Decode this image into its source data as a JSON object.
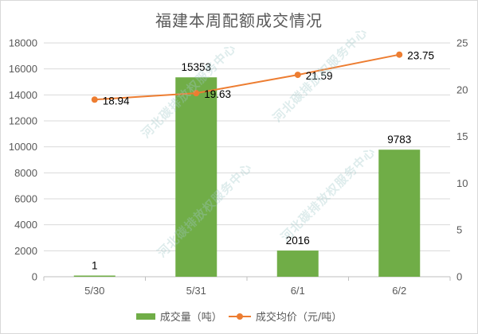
{
  "title": "福建本周配额成交情况",
  "legend": {
    "bar_label": "成交量（吨）",
    "line_label": "成交均价（元/吨）"
  },
  "watermark": "河北碳排放权服务中心",
  "colors": {
    "bar": "#70ad47",
    "line": "#ed7d31",
    "grid": "#d9d9d9",
    "axis_text": "#595959"
  },
  "chart_data": {
    "type": "bar+line",
    "title": "福建本周配额成交情况",
    "categories": [
      "5/30",
      "5/31",
      "6/1",
      "6/2"
    ],
    "series": [
      {
        "name": "成交量（吨）",
        "type": "bar",
        "axis": "left",
        "values": [
          1,
          15353,
          2016,
          9783
        ]
      },
      {
        "name": "成交均价（元/吨）",
        "type": "line",
        "axis": "right",
        "values": [
          18.94,
          19.63,
          21.59,
          23.75
        ]
      }
    ],
    "y_left": {
      "min": 0,
      "max": 18000,
      "step": 2000,
      "ticks": [
        "0",
        "2000",
        "4000",
        "6000",
        "8000",
        "10000",
        "12000",
        "14000",
        "16000",
        "18000"
      ]
    },
    "y_right": {
      "min": 0,
      "max": 25,
      "step": 5,
      "ticks": [
        "0",
        "5",
        "10",
        "15",
        "20",
        "25"
      ]
    },
    "data_labels": {
      "bars": [
        "1",
        "15353",
        "2016",
        "9783"
      ],
      "line": [
        "18.94",
        "19.63",
        "21.59",
        "23.75"
      ]
    },
    "grid": true,
    "legend_position": "bottom"
  }
}
